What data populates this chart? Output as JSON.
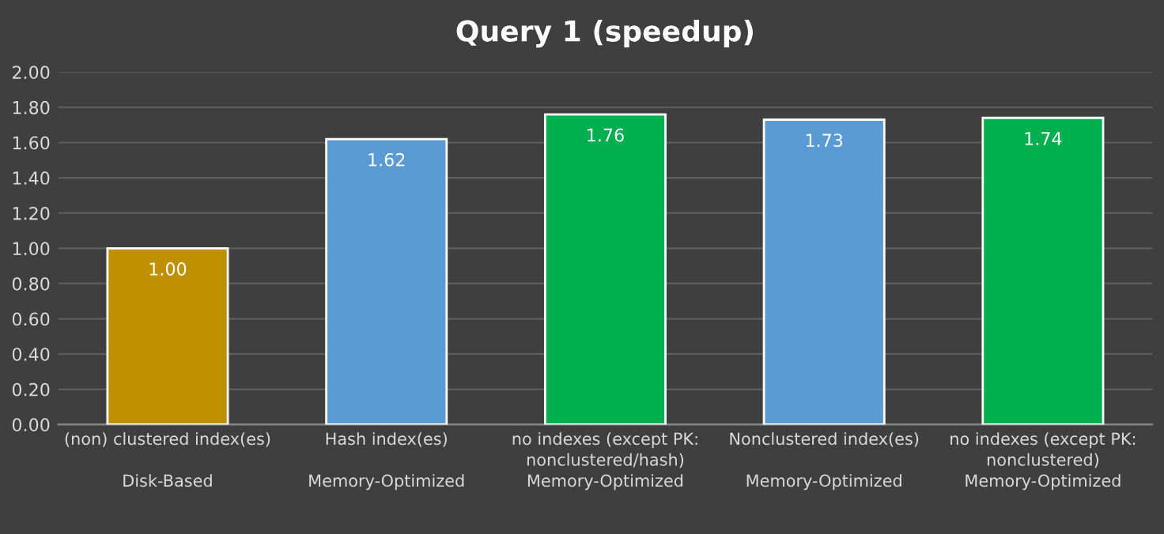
{
  "chart_data": {
    "type": "bar",
    "title": "Query 1 (speedup)",
    "categories": [
      "(non) clustered index(es)\n\nDisk-Based",
      "Hash index(es)\n\nMemory-Optimized",
      "no indexes (except PK:\nnonclustered/hash)\nMemory-Optimized",
      "Nonclustered index(es)\n\nMemory-Optimized",
      "no indexes (except PK:\nnonclustered)\nMemory-Optimized"
    ],
    "values": [
      1.0,
      1.62,
      1.76,
      1.73,
      1.74
    ],
    "colors": [
      "#bf9000",
      "#5b9bd5",
      "#00b050",
      "#5b9bd5",
      "#00b050"
    ],
    "value_labels": [
      "1.00",
      "1.62",
      "1.76",
      "1.73",
      "1.74"
    ],
    "ylim": [
      0,
      2
    ],
    "yticks": [
      {
        "value": 0,
        "label": "0.00"
      },
      {
        "value": 0.2,
        "label": "0.20"
      },
      {
        "value": 0.4,
        "label": "0.40"
      },
      {
        "value": 0.6,
        "label": "0.60"
      },
      {
        "value": 0.8,
        "label": "0.80"
      },
      {
        "value": 1.0,
        "label": "1.00"
      },
      {
        "value": 1.2,
        "label": "1.20"
      },
      {
        "value": 1.4,
        "label": "1.40"
      },
      {
        "value": 1.6,
        "label": "1.60"
      },
      {
        "value": 1.8,
        "label": "1.80"
      },
      {
        "value": 2.0,
        "label": "2.00"
      }
    ],
    "grid": "y",
    "legend": false
  }
}
